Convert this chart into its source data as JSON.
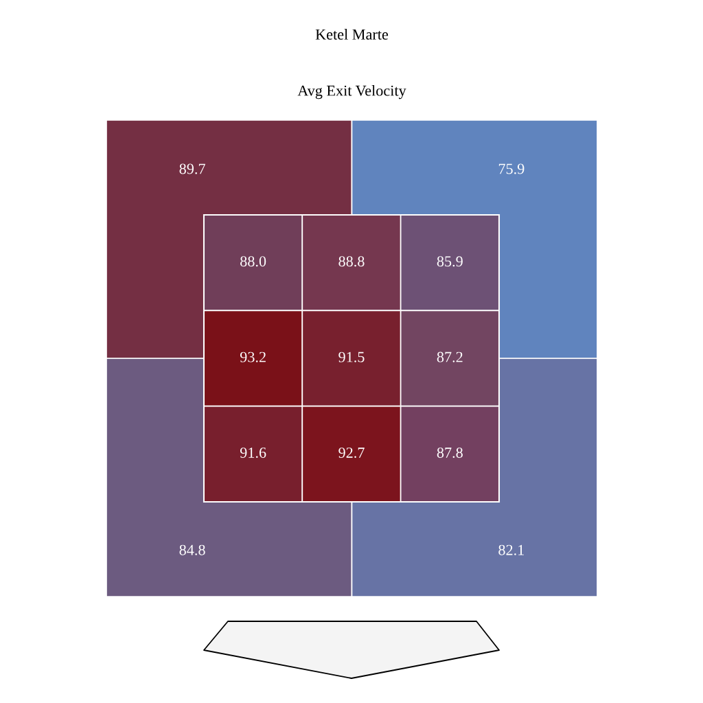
{
  "chart_data": [
    {
      "type": "heatmap",
      "categories": [
        null,
        null,
        null
      ],
      "y_categories": [
        null,
        null,
        null
      ],
      "cells": [
        [
          88.0,
          88.8,
          85.9
        ],
        [
          93.2,
          91.5,
          87.2
        ],
        [
          91.6,
          92.7,
          87.8
        ]
      ],
      "cell_labels": [
        [
          "88.0",
          "88.8",
          "85.9"
        ],
        [
          "93.2",
          "91.5",
          "87.2"
        ],
        [
          "91.6",
          "92.7",
          "87.8"
        ]
      ],
      "colors": [
        [
          "#703e59",
          "#75374f",
          "#6d5175"
        ],
        [
          "#7a1118",
          "#78202e",
          "#724561"
        ],
        [
          "#781f2d",
          "#7c141d",
          "#734060"
        ]
      ],
      "data_labels": true,
      "tick_labels": false
    },
    {
      "type": "heatmap",
      "title": "Ketel Marte",
      "subtitle": "Avg Exit Velocity",
      "categories": [
        null,
        null
      ],
      "y_categories": [
        null,
        null
      ],
      "cells": [
        [
          89.7,
          75.9
        ],
        [
          84.8,
          82.1
        ]
      ],
      "colors": [
        [
          "#742f43",
          "#6084be"
        ],
        [
          "#6c5b80",
          "#6773a5"
        ]
      ],
      "data_labels": true,
      "tick_labels": false
    }
  ]
}
